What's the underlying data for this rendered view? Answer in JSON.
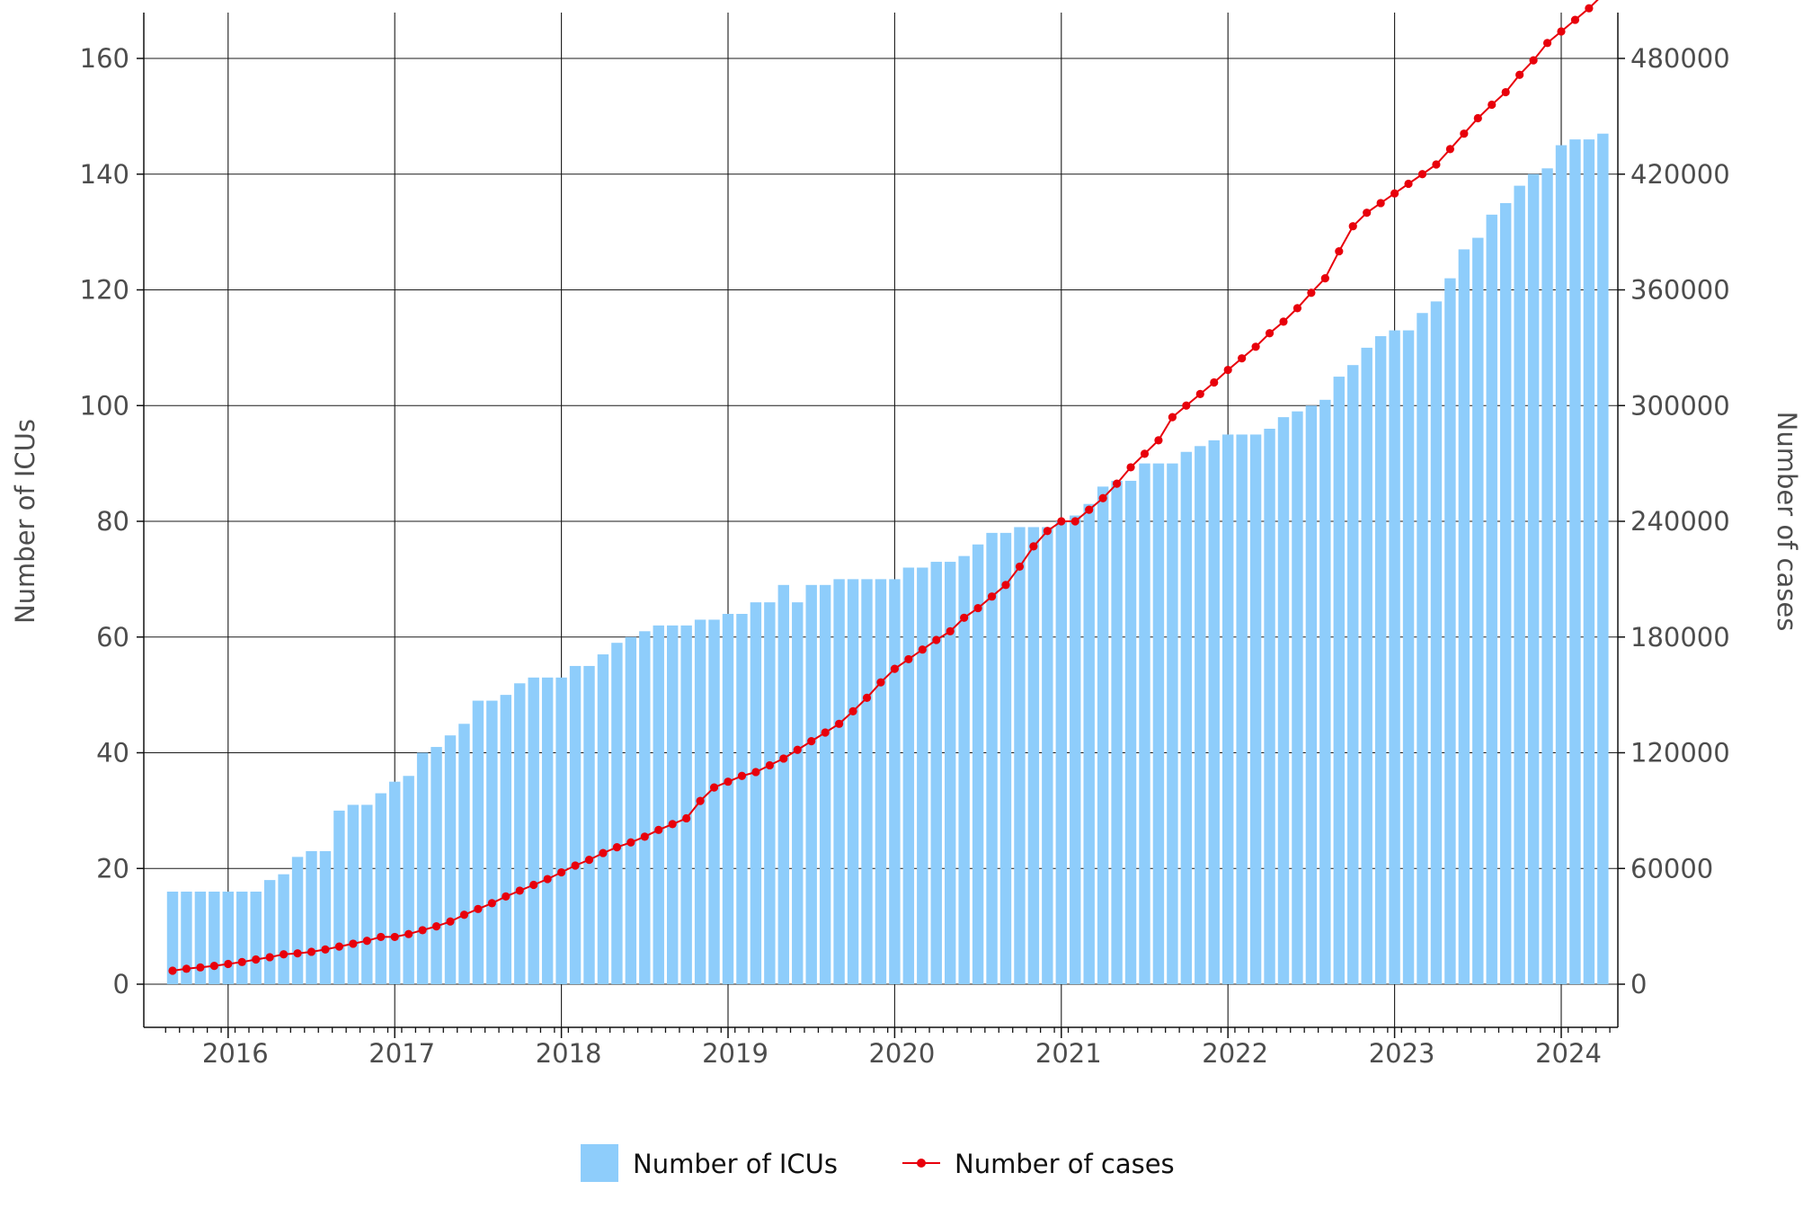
{
  "chart_data": {
    "type": "bar+line",
    "title": "",
    "xlabel": "",
    "ylabel_left": "Number of ICUs",
    "ylabel_right": "Number of cases",
    "ylim_left": [
      0,
      160
    ],
    "ylim_right": [
      0,
      480000
    ],
    "left_ticks": [
      "0",
      "20",
      "40",
      "60",
      "80",
      "100",
      "120",
      "140",
      "160"
    ],
    "right_ticks": [
      "0",
      "60000",
      "120000",
      "180000",
      "240000",
      "300000",
      "360000",
      "420000",
      "480000"
    ],
    "x_ticks": [
      "2016",
      "2017",
      "2018",
      "2019",
      "2020",
      "2021",
      "2022",
      "2023",
      "2024"
    ],
    "x_start": "2015-09",
    "x_end": "2024-03",
    "grid": true,
    "legend_position": "bottom",
    "colors": {
      "bars": "#8ecdfb",
      "line": "#e8000b",
      "grid": "#1a1a1a",
      "axis_text": "#4d4d4d"
    },
    "series": [
      {
        "name": "Number of ICUs",
        "kind": "bar",
        "axis": "left",
        "values": [
          16,
          16,
          16,
          16,
          16,
          16,
          16,
          18,
          19,
          22,
          23,
          23,
          30,
          31,
          31,
          33,
          35,
          36,
          40,
          41,
          43,
          45,
          49,
          49,
          50,
          52,
          53,
          53,
          53,
          55,
          55,
          57,
          59,
          60,
          61,
          62,
          62,
          62,
          63,
          63,
          64,
          64,
          66,
          66,
          69,
          66,
          69,
          69,
          70,
          70,
          70,
          70,
          70,
          72,
          72,
          73,
          73,
          74,
          76,
          78,
          78,
          79,
          79,
          79,
          80,
          81,
          83,
          86,
          87,
          87,
          90,
          90,
          90,
          92,
          93,
          94,
          95,
          95,
          95,
          96,
          98,
          99,
          100,
          101,
          105,
          107,
          110,
          112,
          113,
          113,
          116,
          118,
          122,
          127,
          129,
          133,
          135,
          138,
          140,
          141,
          145,
          146,
          146,
          147
        ]
      },
      {
        "name": "Number of cases",
        "kind": "line",
        "axis": "right",
        "values": [
          7000,
          8000,
          8700,
          9500,
          10500,
          11500,
          12800,
          14000,
          15500,
          16000,
          16800,
          18000,
          19500,
          21000,
          22500,
          24500,
          24500,
          26000,
          28000,
          30000,
          32500,
          36000,
          39000,
          42000,
          45500,
          48500,
          51500,
          54500,
          58000,
          61500,
          64500,
          68000,
          71000,
          73500,
          76500,
          80000,
          83000,
          86000,
          95000,
          102000,
          105000,
          108000,
          110000,
          113500,
          117000,
          121500,
          126000,
          130500,
          135000,
          141500,
          148500,
          156500,
          163500,
          168500,
          173500,
          178500,
          183000,
          190000,
          195000,
          201000,
          207000,
          216500,
          227000,
          235000,
          240000,
          240000,
          246000,
          252000,
          259500,
          268000,
          275000,
          282000,
          294000,
          300000,
          306000,
          312000,
          318500,
          324500,
          330500,
          337500,
          343500,
          350500,
          358500,
          366000,
          380000,
          393000,
          400000,
          405000,
          410000,
          415000,
          420000,
          425000,
          433000,
          441000,
          449000,
          456000,
          462500,
          471500,
          479000,
          488000,
          494000,
          500000,
          506000,
          513000
        ]
      }
    ]
  }
}
